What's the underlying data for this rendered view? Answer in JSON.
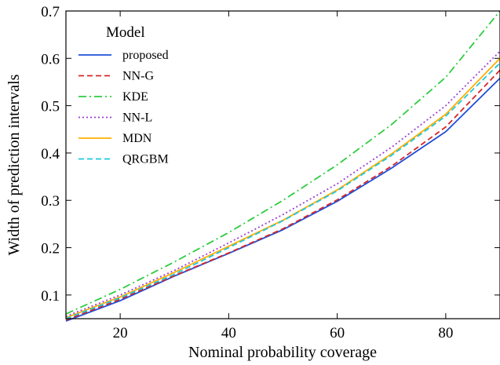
{
  "chart_data": {
    "type": "line",
    "title": "",
    "xlabel": "Nominal probability coverage",
    "ylabel": "Width of prediction intervals",
    "xlim": [
      10,
      90
    ],
    "ylim": [
      0.05,
      0.7
    ],
    "xticks": [
      20,
      40,
      60,
      80
    ],
    "yticks": [
      0.1,
      0.2,
      0.3,
      0.4,
      0.5,
      0.6,
      0.7
    ],
    "grid": false,
    "legend": {
      "title": "Model",
      "placement": "top-left"
    },
    "x": [
      10,
      20,
      30,
      40,
      50,
      60,
      70,
      80,
      90
    ],
    "series": [
      {
        "name": "proposed",
        "color": "#1f4fd8",
        "dash": "solid",
        "values": [
          0.045,
          0.088,
          0.14,
          0.188,
          0.238,
          0.298,
          0.368,
          0.445,
          0.558
        ]
      },
      {
        "name": "NN-G",
        "color": "#d62728",
        "dash": "dashed",
        "values": [
          0.047,
          0.091,
          0.141,
          0.189,
          0.24,
          0.301,
          0.372,
          0.455,
          0.575
        ]
      },
      {
        "name": "KDE",
        "color": "#2ecc40",
        "dash": "dashdot",
        "values": [
          0.06,
          0.112,
          0.17,
          0.232,
          0.3,
          0.375,
          0.46,
          0.56,
          0.7
        ]
      },
      {
        "name": "NN-L",
        "color": "#9b3fd6",
        "dash": "dotted",
        "values": [
          0.055,
          0.1,
          0.152,
          0.21,
          0.27,
          0.335,
          0.412,
          0.5,
          0.615
        ]
      },
      {
        "name": "MDN",
        "color": "#ffb000",
        "dash": "solid",
        "values": [
          0.052,
          0.096,
          0.148,
          0.203,
          0.258,
          0.322,
          0.398,
          0.482,
          0.6
        ]
      },
      {
        "name": "QRGBM",
        "color": "#1ec8e0",
        "dash": "dashed",
        "values": [
          0.05,
          0.094,
          0.144,
          0.2,
          0.257,
          0.32,
          0.395,
          0.478,
          0.59
        ]
      }
    ]
  }
}
